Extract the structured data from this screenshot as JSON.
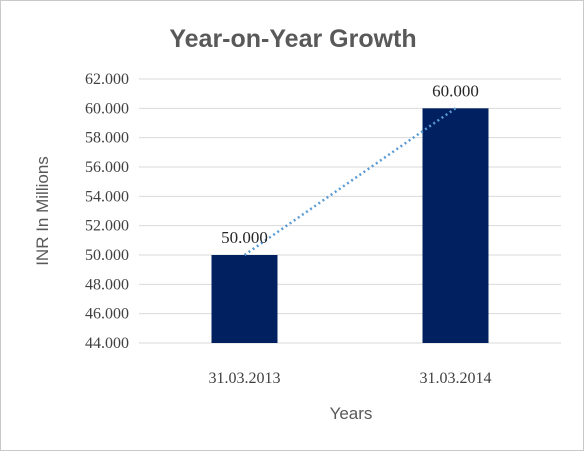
{
  "chart_data": {
    "type": "bar",
    "title": "Year-on-Year Growth",
    "xlabel": "Years",
    "ylabel": "INR In Millions",
    "categories": [
      "31.03.2013",
      "31.03.2014"
    ],
    "values": [
      50.0,
      60.0
    ],
    "data_labels": [
      "50.000",
      "60.000"
    ],
    "ylim": [
      44.0,
      62.0
    ],
    "yticks": [
      44.0,
      46.0,
      48.0,
      50.0,
      52.0,
      54.0,
      56.0,
      58.0,
      60.0,
      62.0
    ],
    "ytick_labels": [
      "44.000",
      "46.000",
      "48.000",
      "50.000",
      "52.000",
      "54.000",
      "56.000",
      "58.000",
      "60.000",
      "62.000"
    ],
    "grid": "horizontal",
    "trendline": {
      "type": "linear",
      "style": "dotted",
      "color": "#5b9bd5"
    },
    "bar_color": "#002060",
    "grid_color": "#d9d9d9",
    "legend": "none"
  }
}
